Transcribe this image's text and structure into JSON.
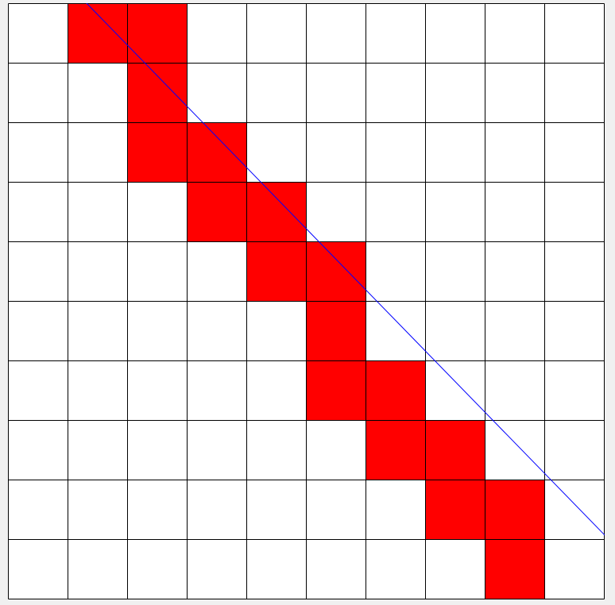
{
  "grid": {
    "rows": 10,
    "cols": 10,
    "background_color": "#ffffff",
    "line_color": "#000000",
    "filled_color": "#ff0000",
    "filled_cells": [
      [
        0,
        1
      ],
      [
        0,
        2
      ],
      [
        1,
        2
      ],
      [
        2,
        2
      ],
      [
        2,
        3
      ],
      [
        3,
        3
      ],
      [
        3,
        4
      ],
      [
        4,
        4
      ],
      [
        4,
        5
      ],
      [
        5,
        5
      ],
      [
        6,
        5
      ],
      [
        6,
        6
      ],
      [
        7,
        6
      ],
      [
        7,
        7
      ],
      [
        8,
        7
      ],
      [
        8,
        8
      ],
      [
        9,
        8
      ]
    ]
  },
  "line": {
    "color": "#0000ff",
    "from_grid": [
      1.27,
      -0.05
    ],
    "to_grid": [
      10.05,
      8.97
    ]
  }
}
